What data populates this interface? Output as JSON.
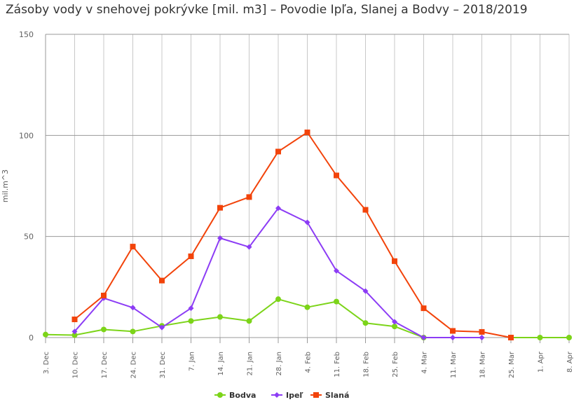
{
  "chart_data": {
    "type": "line",
    "title": "Zásoby vody v snehovej pokrývke [mil. m3] – Povodie Ipľa, Slanej a Bodvy – 2018/2019",
    "xlabel": "",
    "ylabel": "mil.m^3",
    "ylim": [
      0,
      150
    ],
    "yticks": [
      0,
      50,
      100,
      150
    ],
    "grid": true,
    "legend": "bottom-center",
    "categories": [
      "3. Dec",
      "10. Dec",
      "17. Dec",
      "24. Dec",
      "31. Dec",
      "7. Jan",
      "14. Jan",
      "21. Jan",
      "28. Jan",
      "4. Feb",
      "11. Feb",
      "18. Feb",
      "25. Feb",
      "4. Mar",
      "11. Mar",
      "18. Mar",
      "25. Mar",
      "1. Apr",
      "8. Apr"
    ],
    "series": [
      {
        "name": "Bodva",
        "color": "#7cd419",
        "marker": "circle",
        "values": [
          1.5,
          1.2,
          4,
          3,
          5.8,
          8.2,
          10.2,
          8.2,
          19,
          15,
          17.8,
          7.2,
          5.5,
          0,
          null,
          null,
          0,
          0,
          0
        ]
      },
      {
        "name": "Ipeľ",
        "color": "#8c3cf5",
        "marker": "diamond",
        "values": [
          null,
          3,
          19.5,
          14.8,
          5,
          14.5,
          49.2,
          44.8,
          64,
          57,
          33,
          23,
          7.8,
          0,
          0,
          0,
          null,
          null,
          null
        ]
      },
      {
        "name": "Slaná",
        "color": "#f2430a",
        "marker": "square",
        "values": [
          null,
          9,
          20.8,
          45,
          28.2,
          40.2,
          64.2,
          69.5,
          92,
          101.5,
          80.2,
          63.2,
          37.8,
          14.5,
          3.3,
          2.8,
          0,
          null,
          null
        ]
      }
    ]
  }
}
